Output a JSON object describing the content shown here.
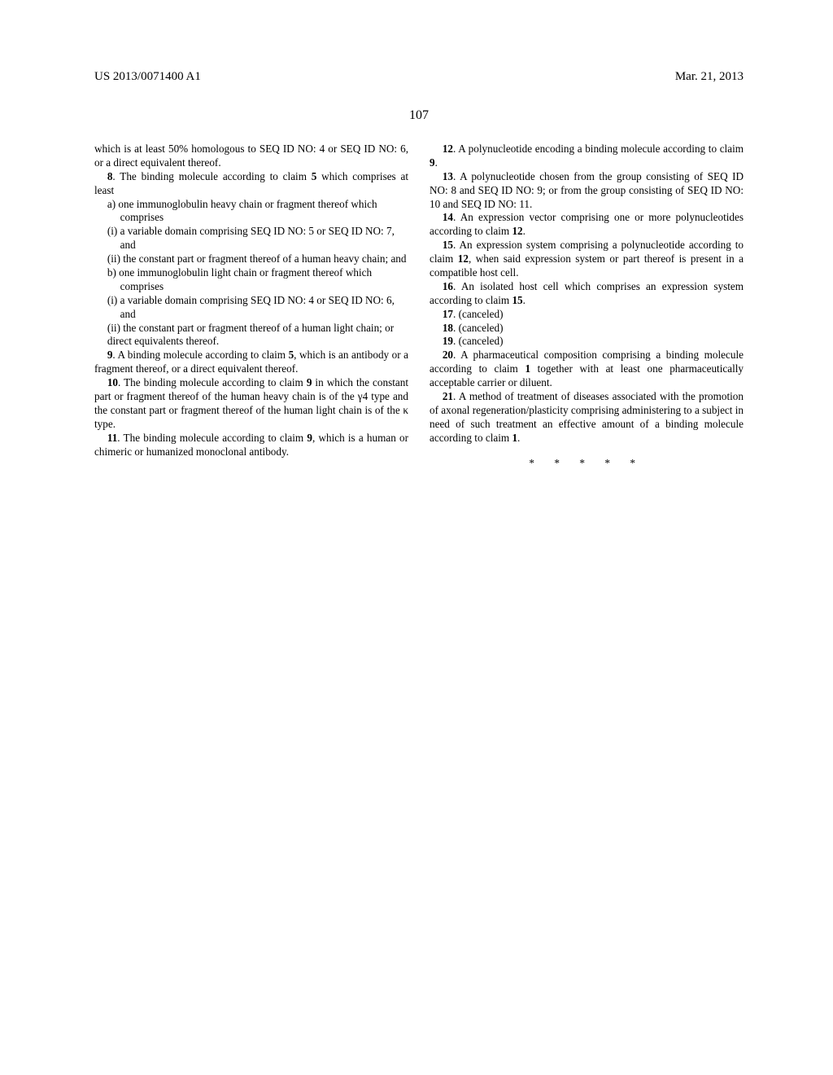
{
  "header": {
    "left": "US 2013/0071400 A1",
    "right": "Mar. 21, 2013"
  },
  "page_number": "107",
  "col1": {
    "p1": "which is at least 50% homologous to SEQ ID NO: 4 or SEQ ID NO: 6, or a direct equivalent thereof.",
    "p2_lead": "8",
    "p2_body": ". The binding molecule according to claim ",
    "p2_ref": "5",
    "p2_tail": " which comprises at least",
    "sub_a": "a) one immunoglobulin heavy chain or fragment thereof which comprises",
    "sub_ai": "(i) a variable domain comprising SEQ ID NO: 5 or SEQ ID NO: 7, and",
    "sub_aii": "(ii) the constant part or fragment thereof of a human heavy chain; and",
    "sub_b": "b) one immunoglobulin light chain or fragment thereof which comprises",
    "sub_bi": "(i) a variable domain comprising SEQ ID NO: 4 or SEQ ID NO: 6, and",
    "sub_bii": "(ii) the constant part or fragment thereof of a human light chain; or",
    "sub_direct": "direct equivalents thereof.",
    "p9_lead": "9",
    "p9_body": ". A binding molecule according to claim ",
    "p9_ref": "5",
    "p9_tail": ", which is an antibody or a fragment thereof, or a direct equivalent thereof.",
    "p10_lead": "10",
    "p10_body": ". The binding molecule according to claim ",
    "p10_ref": "9",
    "p10_tail": " in which the constant part or fragment thereof of the human heavy chain is of the γ4 type and the constant part or fragment thereof of the human light chain is of the κ type.",
    "p11_lead": "11",
    "p11_body": ". The binding molecule according to claim ",
    "p11_ref": "9",
    "p11_tail": ", which is a human or chimeric or humanized monoclonal antibody."
  },
  "col2": {
    "p12_lead": "12",
    "p12_body": ". A polynucleotide encoding a binding molecule according to claim ",
    "p12_ref": "9",
    "p12_tail": ".",
    "p13_lead": "13",
    "p13_tail": ". A polynucleotide chosen from the group consisting of SEQ ID NO: 8 and SEQ ID NO: 9; or from the group consisting of SEQ ID NO: 10 and SEQ ID NO: 11.",
    "p14_lead": "14",
    "p14_body": ". An expression vector comprising one or more polynucleotides according to claim ",
    "p14_ref": "12",
    "p14_tail": ".",
    "p15_lead": "15",
    "p15_body": ". An expression system comprising a polynucleotide according to claim ",
    "p15_ref": "12",
    "p15_tail": ", when said expression system or part thereof is present in a compatible host cell.",
    "p16_lead": "16",
    "p16_body": ". An isolated host cell which comprises an expression system according to claim ",
    "p16_ref": "15",
    "p16_tail": ".",
    "p17_lead": "17",
    "p17_tail": ". (canceled)",
    "p18_lead": "18",
    "p18_tail": ". (canceled)",
    "p19_lead": "19",
    "p19_tail": ". (canceled)",
    "p20_lead": "20",
    "p20_body": ". A pharmaceutical composition comprising a binding molecule according to claim ",
    "p20_ref": "1",
    "p20_tail": " together with at least one pharmaceutically acceptable carrier or diluent.",
    "p21_lead": "21",
    "p21_body": ". A method of treatment of diseases associated with the promotion of axonal regeneration/plasticity comprising administering to a subject in need of such treatment an effective amount of a binding molecule according to claim ",
    "p21_ref": "1",
    "p21_tail": "."
  },
  "endmark": "* * * * *"
}
